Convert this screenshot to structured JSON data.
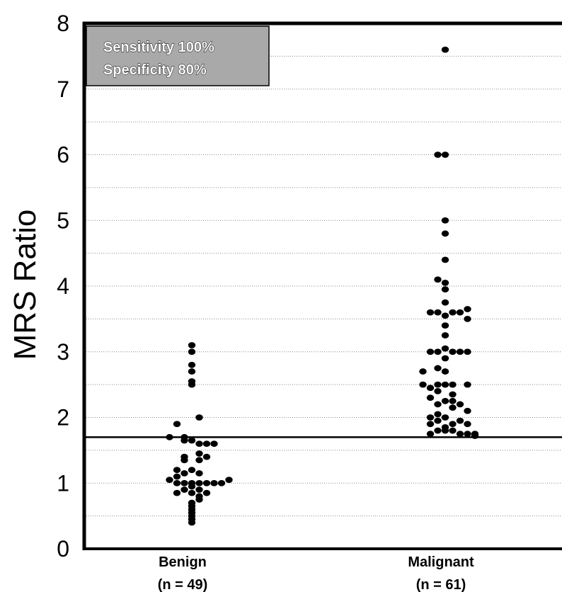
{
  "chart_data": {
    "type": "scatter",
    "title": "",
    "ylabel": "MRS Ratio",
    "xlabel": "",
    "ylim": [
      0,
      8
    ],
    "yticks": [
      0,
      1,
      2,
      3,
      4,
      5,
      6,
      7,
      8
    ],
    "grid": true,
    "threshold": 1.7,
    "annotation": {
      "lines": [
        "Sensitivity 100%",
        "Specificity 80%"
      ]
    },
    "categories": [
      {
        "label": "Benign",
        "sublabel": "(n = 49)"
      },
      {
        "label": "Malignant",
        "sublabel": "(n = 61)"
      }
    ],
    "series": [
      {
        "category": "Benign",
        "values": [
          3.1,
          3.0,
          2.8,
          2.7,
          2.55,
          2.5,
          2.0,
          1.9,
          1.7,
          1.7,
          1.65,
          1.65,
          1.6,
          1.6,
          1.45,
          1.4,
          1.4,
          1.35,
          1.35,
          1.2,
          1.2,
          1.15,
          1.15,
          1.1,
          1.05,
          1.0,
          1.0,
          1.0,
          1.0,
          1.0,
          1.0,
          0.95,
          0.9,
          0.9,
          0.85,
          0.85,
          0.85,
          0.8,
          0.75,
          0.7,
          0.65,
          0.6,
          0.55,
          0.5,
          0.45,
          0.4,
          1.0,
          1.05,
          1.6
        ],
        "offsets": [
          0,
          0,
          0,
          0,
          0,
          0,
          1,
          -2,
          -3,
          -1,
          -1,
          0,
          1,
          2,
          1,
          -1,
          2,
          -1,
          1,
          -2,
          0,
          -1,
          1,
          -2,
          -3,
          -2,
          -1,
          0,
          1,
          2,
          3,
          0,
          -1,
          1,
          -2,
          0,
          2,
          1,
          1,
          0,
          0,
          0,
          0,
          0,
          0,
          0,
          4,
          5,
          3
        ]
      },
      {
        "category": "Malignant",
        "values": [
          7.6,
          6.0,
          6.0,
          5.0,
          4.8,
          4.4,
          4.1,
          4.05,
          3.95,
          3.75,
          3.6,
          3.6,
          3.6,
          3.6,
          3.55,
          3.65,
          3.5,
          3.4,
          3.25,
          3.05,
          3.0,
          3.0,
          3.0,
          3.0,
          3.0,
          2.9,
          2.75,
          2.7,
          2.7,
          2.5,
          2.5,
          2.5,
          2.5,
          2.45,
          2.4,
          2.35,
          2.3,
          2.25,
          2.25,
          2.2,
          2.15,
          2.1,
          2.05,
          2.0,
          2.0,
          1.95,
          1.95,
          1.9,
          1.9,
          1.9,
          1.85,
          1.8,
          1.8,
          1.8,
          1.75,
          1.75,
          1.75,
          1.75,
          2.5,
          2.2,
          1.72
        ],
        "offsets": [
          0,
          -1,
          0,
          0,
          0,
          0,
          -1,
          0,
          0,
          0,
          -2,
          -1,
          1,
          2,
          0,
          3,
          3,
          0,
          0,
          0,
          -2,
          -1,
          1,
          2,
          3,
          0,
          -1,
          -3,
          0,
          -3,
          -1,
          0,
          1,
          -2,
          -1,
          1,
          -2,
          0,
          1,
          -1,
          1,
          3,
          -1,
          -2,
          0,
          -1,
          2,
          -2,
          1,
          3,
          0,
          -1,
          0,
          1,
          -2,
          2,
          3,
          4,
          3,
          2,
          4
        ]
      }
    ]
  }
}
